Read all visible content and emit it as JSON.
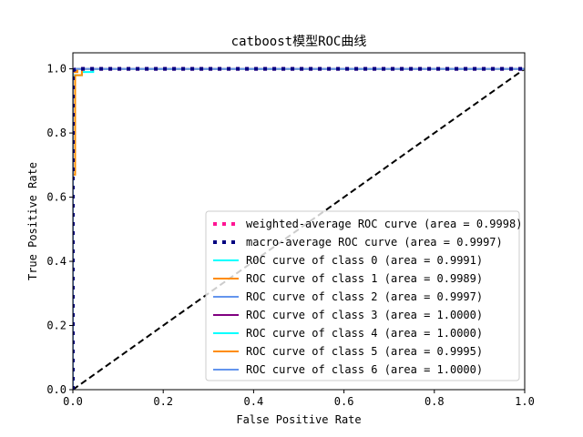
{
  "chart_data": {
    "type": "line",
    "title": "catboost模型ROC曲线",
    "xlabel": "False Positive Rate",
    "ylabel": "True Positive Rate",
    "xlim": [
      0.0,
      1.0
    ],
    "ylim": [
      0.0,
      1.05
    ],
    "xticks": [
      0.0,
      0.2,
      0.4,
      0.6,
      0.8,
      1.0
    ],
    "yticks": [
      0.0,
      0.2,
      0.4,
      0.6,
      0.8,
      1.0
    ],
    "xtick_labels": [
      "0.0",
      "0.2",
      "0.4",
      "0.6",
      "0.8",
      "1.0"
    ],
    "ytick_labels": [
      "0.0",
      "0.2",
      "0.4",
      "0.6",
      "0.8",
      "1.0"
    ],
    "grid": false,
    "legend_position": "lower-right",
    "series": [
      {
        "name": "weighted-average ROC curve (area = 0.9998)",
        "color": "#ff1493",
        "style": "dotted",
        "width": 4,
        "x": [
          0,
          0,
          0.005,
          0.01,
          1.0
        ],
        "y": [
          0,
          0.995,
          0.998,
          1.0,
          1.0
        ]
      },
      {
        "name": "macro-average ROC curve (area = 0.9997)",
        "color": "#000080",
        "style": "dotted",
        "width": 4,
        "x": [
          0,
          0,
          0.005,
          0.01,
          1.0
        ],
        "y": [
          0,
          0.995,
          0.998,
          1.0,
          1.0
        ]
      },
      {
        "name": "ROC curve of class 0 (area = 0.9991)",
        "color": "#00ffff",
        "style": "solid",
        "width": 2,
        "x": [
          0,
          0,
          0.02,
          0.02,
          0.045,
          0.045,
          1.0
        ],
        "y": [
          0,
          0.98,
          0.98,
          0.99,
          0.99,
          1.0,
          1.0
        ]
      },
      {
        "name": "ROC curve of class 1 (area = 0.9989)",
        "color": "#ff8c00",
        "style": "solid",
        "width": 2,
        "x": [
          0,
          0.0,
          0.005,
          0.005,
          0.02,
          0.02,
          1.0
        ],
        "y": [
          0,
          0.67,
          0.67,
          0.98,
          0.98,
          1.0,
          1.0
        ]
      },
      {
        "name": "ROC curve of class 2 (area = 0.9997)",
        "color": "#6495ed",
        "style": "solid",
        "width": 2,
        "x": [
          0,
          0,
          0.008,
          0.008,
          1.0
        ],
        "y": [
          0,
          0.99,
          0.99,
          1.0,
          1.0
        ]
      },
      {
        "name": "ROC curve of class 3 (area = 1.0000)",
        "color": "#800080",
        "style": "solid",
        "width": 2,
        "x": [
          0,
          0,
          1.0
        ],
        "y": [
          0,
          1.0,
          1.0
        ]
      },
      {
        "name": "ROC curve of class 4 (area = 1.0000)",
        "color": "#00ffff",
        "style": "solid",
        "width": 2,
        "x": [
          0,
          0,
          1.0
        ],
        "y": [
          0,
          1.0,
          1.0
        ]
      },
      {
        "name": "ROC curve of class 5 (area = 0.9995)",
        "color": "#ff8c00",
        "style": "solid",
        "width": 2,
        "x": [
          0,
          0,
          0.01,
          0.01,
          1.0
        ],
        "y": [
          0,
          0.99,
          0.99,
          1.0,
          1.0
        ]
      },
      {
        "name": "ROC curve of class 6 (area = 1.0000)",
        "color": "#6495ed",
        "style": "solid",
        "width": 2,
        "x": [
          0,
          0,
          1.0
        ],
        "y": [
          0,
          1.0,
          1.0
        ]
      }
    ],
    "reference_line": {
      "color": "#000000",
      "style": "dashed",
      "x": [
        0,
        1
      ],
      "y": [
        0,
        1
      ]
    }
  }
}
